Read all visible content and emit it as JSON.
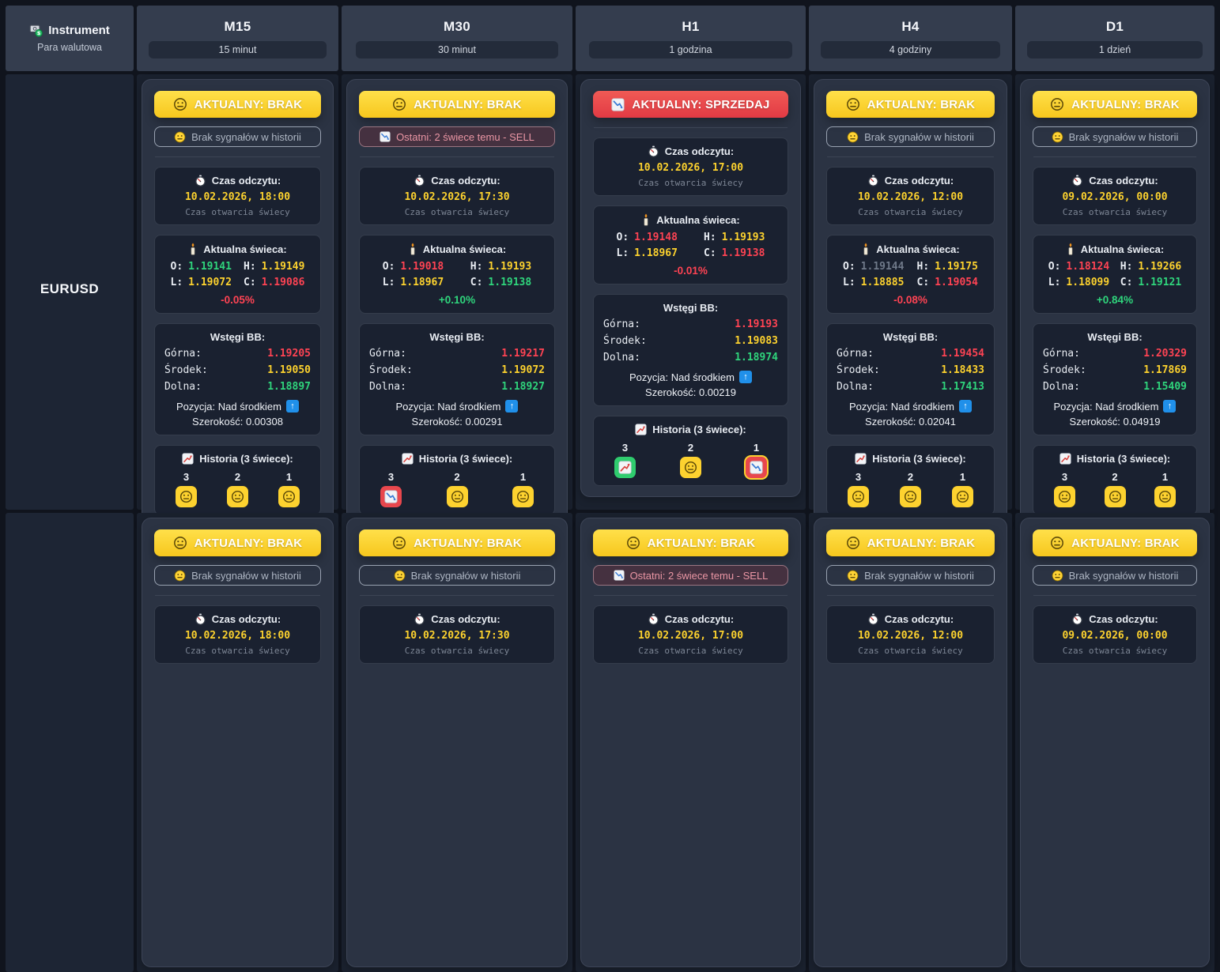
{
  "header": {
    "instrument": {
      "label": "Instrument",
      "subtitle": "Para walutowa",
      "icon": "currency-exchange-icon"
    },
    "timeframes": [
      {
        "code": "M15",
        "desc": "15 minut"
      },
      {
        "code": "M30",
        "desc": "30 minut"
      },
      {
        "code": "H1",
        "desc": "1 godzina"
      },
      {
        "code": "H4",
        "desc": "4 godziny"
      },
      {
        "code": "D1",
        "desc": "1 dzień"
      }
    ]
  },
  "labels": {
    "read_title": "Czas odczytu:",
    "read_subtitle": "Czas otwarcia świecy",
    "candle_title": "Aktualna świeca:",
    "o_label": "O:",
    "h_label": "H:",
    "l_label": "L:",
    "c_label": "C:",
    "bb_title": "Wstęgi BB:",
    "bb_upper_label": "Górna:",
    "bb_middle_label": "Środek:",
    "bb_lower_label": "Dolna:",
    "history_title": "Historia (3 świece):",
    "position_arrow": "↑"
  },
  "icons": {
    "signal_none": "neutral-face-icon",
    "signal_sell": "chart-decreasing-icon",
    "read_time": "stopwatch-icon",
    "candle": "candle-icon",
    "history_title": "chart-increasing-icon"
  },
  "colors": {
    "accent_yellow": "#fdd22f",
    "accent_red": "#e8474d",
    "accent_green": "#2fcc6e",
    "value_yellow": "#fdd22e",
    "value_green": "#2fd57c",
    "value_red": "#ff4353",
    "badge_blue": "#2090ea"
  },
  "rows": [
    {
      "instrument": "EURUSD",
      "cells": [
        {
          "signal": {
            "text": "AKTUALNY: BRAK",
            "type": "none"
          },
          "note": {
            "text": "Brak sygnałów w historii",
            "type": "none"
          },
          "read": {
            "datetime": "10.02.2026, 18:00"
          },
          "candle": {
            "o": {
              "v": "1.19141",
              "c": "green"
            },
            "h": {
              "v": "1.19149",
              "c": "yellow"
            },
            "l": {
              "v": "1.19072",
              "c": "yellow"
            },
            "close": {
              "v": "1.19086",
              "c": "red"
            },
            "change": {
              "v": "-0.05%",
              "c": "red"
            }
          },
          "bb": {
            "upper": "1.19205",
            "middle": "1.19050",
            "lower": "1.18897",
            "position": "Pozycja: Nad środkiem",
            "width": "Szerokość: 0.00308"
          },
          "history": [
            {
              "label": "3",
              "icon": "neutral"
            },
            {
              "label": "2",
              "icon": "neutral"
            },
            {
              "label": "1",
              "icon": "neutral"
            }
          ]
        },
        {
          "signal": {
            "text": "AKTUALNY: BRAK",
            "type": "none"
          },
          "note": {
            "text": "Ostatni: 2 świece temu - SELL",
            "type": "sell"
          },
          "read": {
            "datetime": "10.02.2026, 17:30"
          },
          "candle": {
            "o": {
              "v": "1.19018",
              "c": "red"
            },
            "h": {
              "v": "1.19193",
              "c": "yellow"
            },
            "l": {
              "v": "1.18967",
              "c": "yellow"
            },
            "close": {
              "v": "1.19138",
              "c": "green"
            },
            "change": {
              "v": "+0.10%",
              "c": "green"
            }
          },
          "bb": {
            "upper": "1.19217",
            "middle": "1.19072",
            "lower": "1.18927",
            "position": "Pozycja: Nad środkiem",
            "width": "Szerokość: 0.00291"
          },
          "history": [
            {
              "label": "3",
              "icon": "down"
            },
            {
              "label": "2",
              "icon": "neutral"
            },
            {
              "label": "1",
              "icon": "neutral"
            }
          ]
        },
        {
          "signal": {
            "text": "AKTUALNY: SPRZEDAJ",
            "type": "sell"
          },
          "note": null,
          "read": {
            "datetime": "10.02.2026, 17:00"
          },
          "candle": {
            "o": {
              "v": "1.19148",
              "c": "red"
            },
            "h": {
              "v": "1.19193",
              "c": "yellow"
            },
            "l": {
              "v": "1.18967",
              "c": "yellow"
            },
            "close": {
              "v": "1.19138",
              "c": "red"
            },
            "change": {
              "v": "-0.01%",
              "c": "red"
            }
          },
          "bb": {
            "upper": "1.19193",
            "middle": "1.19083",
            "lower": "1.18974",
            "position": "Pozycja: Nad środkiem",
            "width": "Szerokość: 0.00219"
          },
          "history": [
            {
              "label": "3",
              "icon": "up"
            },
            {
              "label": "2",
              "icon": "neutral"
            },
            {
              "label": "1",
              "icon": "down",
              "highlight": true
            }
          ]
        },
        {
          "signal": {
            "text": "AKTUALNY: BRAK",
            "type": "none"
          },
          "note": {
            "text": "Brak sygnałów w historii",
            "type": "none"
          },
          "read": {
            "datetime": "10.02.2026, 12:00"
          },
          "candle": {
            "o": {
              "v": "1.19144",
              "c": "gray"
            },
            "h": {
              "v": "1.19175",
              "c": "yellow"
            },
            "l": {
              "v": "1.18885",
              "c": "yellow"
            },
            "close": {
              "v": "1.19054",
              "c": "red"
            },
            "change": {
              "v": "-0.08%",
              "c": "red"
            }
          },
          "bb": {
            "upper": "1.19454",
            "middle": "1.18433",
            "lower": "1.17413",
            "position": "Pozycja: Nad środkiem",
            "width": "Szerokość: 0.02041"
          },
          "history": [
            {
              "label": "3",
              "icon": "neutral"
            },
            {
              "label": "2",
              "icon": "neutral"
            },
            {
              "label": "1",
              "icon": "neutral"
            }
          ]
        },
        {
          "signal": {
            "text": "AKTUALNY: BRAK",
            "type": "none"
          },
          "note": {
            "text": "Brak sygnałów w historii",
            "type": "none"
          },
          "read": {
            "datetime": "09.02.2026, 00:00"
          },
          "candle": {
            "o": {
              "v": "1.18124",
              "c": "red"
            },
            "h": {
              "v": "1.19266",
              "c": "yellow"
            },
            "l": {
              "v": "1.18099",
              "c": "yellow"
            },
            "close": {
              "v": "1.19121",
              "c": "green"
            },
            "change": {
              "v": "+0.84%",
              "c": "green"
            }
          },
          "bb": {
            "upper": "1.20329",
            "middle": "1.17869",
            "lower": "1.15409",
            "position": "Pozycja: Nad środkiem",
            "width": "Szerokość: 0.04919"
          },
          "history": [
            {
              "label": "3",
              "icon": "neutral"
            },
            {
              "label": "2",
              "icon": "neutral"
            },
            {
              "label": "1",
              "icon": "neutral"
            }
          ]
        }
      ]
    },
    {
      "instrument": "",
      "partial": true,
      "cells": [
        {
          "signal": {
            "text": "AKTUALNY: BRAK",
            "type": "none"
          },
          "note": {
            "text": "Brak sygnałów w historii",
            "type": "none"
          },
          "read": {
            "datetime": "10.02.2026, 18:00"
          }
        },
        {
          "signal": {
            "text": "AKTUALNY: BRAK",
            "type": "none"
          },
          "note": {
            "text": "Brak sygnałów w historii",
            "type": "none"
          },
          "read": {
            "datetime": "10.02.2026, 17:30"
          }
        },
        {
          "signal": {
            "text": "AKTUALNY: BRAK",
            "type": "none"
          },
          "note": {
            "text": "Ostatni: 2 świece temu - SELL",
            "type": "sell"
          },
          "read": {
            "datetime": "10.02.2026, 17:00"
          }
        },
        {
          "signal": {
            "text": "AKTUALNY: BRAK",
            "type": "none"
          },
          "note": {
            "text": "Brak sygnałów w historii",
            "type": "none"
          },
          "read": {
            "datetime": "10.02.2026, 12:00"
          }
        },
        {
          "signal": {
            "text": "AKTUALNY: BRAK",
            "type": "none"
          },
          "note": {
            "text": "Brak sygnałów w historii",
            "type": "none"
          },
          "read": {
            "datetime": "09.02.2026, 00:00"
          }
        }
      ]
    }
  ]
}
